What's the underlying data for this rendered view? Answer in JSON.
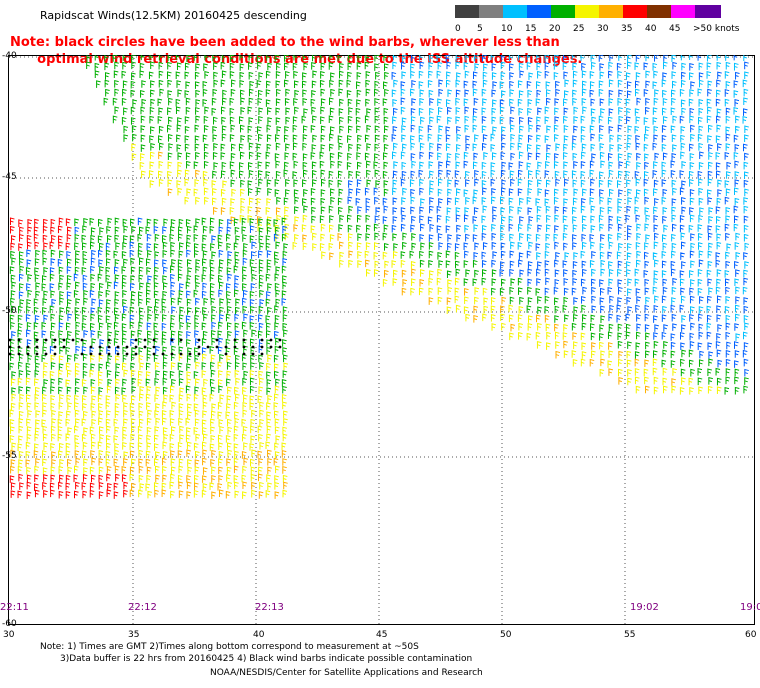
{
  "title": "Rapidscat Winds(12.5KM) 20160425 descending",
  "note_line1": "Note: black circles have been added to the wind barbs, wherever less than",
  "note_line2": "      optimal wind retrieval conditions are met due to the ISS altitude changes.",
  "legend": {
    "labels": [
      "0",
      "5",
      "10",
      "15",
      "20",
      "25",
      "30",
      "35",
      "40",
      "45",
      ">50 knots"
    ],
    "colors": [
      "#404040",
      "#7f7f7f",
      "#00c0ff",
      "#0060ff",
      "#00b000",
      "#f5f500",
      "#ffb000",
      "#ff0000",
      "#803000",
      "#ff00ff",
      "#6000a0"
    ]
  },
  "map": {
    "lat_labels": [
      "-40",
      "-45",
      "-50",
      "-55",
      "-60"
    ],
    "lon_labels": [
      "30",
      "35",
      "40",
      "45",
      "50",
      "55",
      "60"
    ],
    "time_labels": [
      "22:11",
      "22:12",
      "22:13",
      "19:02",
      "19:0"
    ]
  },
  "footer": {
    "line1": "Note: 1) Times are GMT 2)Times along bottom correspond to measurement at ~50S",
    "line2": "3)Data buffer is 22 hrs from 20160425 4) Black wind barbs indicate possible contamination",
    "line3": "NOAA/NESDIS/Center for Satellite Applications and Research"
  }
}
